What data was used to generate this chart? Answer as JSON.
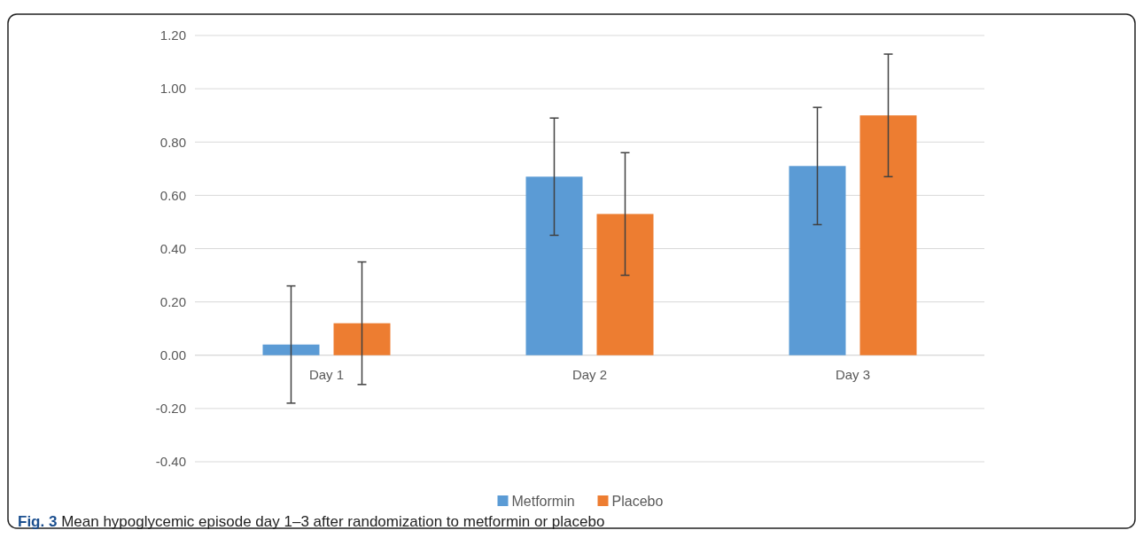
{
  "chart_data": {
    "type": "bar",
    "categories": [
      "Day 1",
      "Day 2",
      "Day 3"
    ],
    "series": [
      {
        "name": "Metformin",
        "color": "#5b9bd5",
        "values": [
          0.04,
          0.67,
          0.71
        ],
        "errors": [
          0.22,
          0.22,
          0.22
        ]
      },
      {
        "name": "Placebo",
        "color": "#ed7d31",
        "values": [
          0.12,
          0.53,
          0.9
        ],
        "errors": [
          0.23,
          0.23,
          0.23
        ]
      }
    ],
    "ylim": [
      -0.4,
      1.2
    ],
    "yticks": [
      {
        "value": -0.4,
        "label": "-0.40"
      },
      {
        "value": -0.2,
        "label": "-0.20"
      },
      {
        "value": 0,
        "label": "0.00"
      },
      {
        "value": 0.2,
        "label": "0.20"
      },
      {
        "value": 0.4,
        "label": "0.40"
      },
      {
        "value": 0.6,
        "label": "0.60"
      },
      {
        "value": 0.8,
        "label": "0.80"
      },
      {
        "value": 1.0,
        "label": "1.00"
      },
      {
        "value": 1.2,
        "label": "1.20"
      }
    ],
    "grid": "y",
    "legend": "bottom",
    "annotations": [
      "Fig. 3",
      "Mean hypoglycemic episode day 1–3 after randomization to metformin or placebo"
    ]
  }
}
